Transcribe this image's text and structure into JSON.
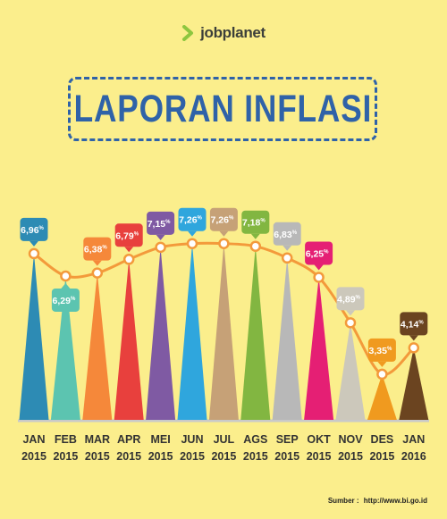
{
  "logo": {
    "text": "jobplanet",
    "mark_color": "#8dc63f"
  },
  "title": "LAPORAN INFLASI",
  "source": {
    "label": "Sumber :",
    "url": "http://www.bi.go.id"
  },
  "colors": {
    "background": "#fbee8c",
    "line": "#f39a3b",
    "baseline": "#c9c9c9",
    "title": "#2f62a8"
  },
  "chart_data": {
    "type": "line",
    "title": "LAPORAN INFLASI",
    "categories": [
      "JAN 2015",
      "FEB 2015",
      "MAR 2015",
      "APR 2015",
      "MEI 2015",
      "JUN 2015",
      "JUL 2015",
      "AGS 2015",
      "SEP 2015",
      "OKT 2015",
      "NOV 2015",
      "DES 2015",
      "JAN 2016"
    ],
    "category_lines": [
      [
        "JAN",
        "2015"
      ],
      [
        "FEB",
        "2015"
      ],
      [
        "MAR",
        "2015"
      ],
      [
        "APR",
        "2015"
      ],
      [
        "MEI",
        "2015"
      ],
      [
        "JUN",
        "2015"
      ],
      [
        "JUL",
        "2015"
      ],
      [
        "AGS",
        "2015"
      ],
      [
        "SEP",
        "2015"
      ],
      [
        "OKT",
        "2015"
      ],
      [
        "NOV",
        "2015"
      ],
      [
        "DES",
        "2015"
      ],
      [
        "JAN",
        "2016"
      ]
    ],
    "values": [
      6.96,
      6.29,
      6.38,
      6.79,
      7.15,
      7.26,
      7.26,
      7.18,
      6.83,
      6.25,
      4.89,
      3.35,
      4.14
    ],
    "value_labels": [
      "6,96",
      "6,29",
      "6,38",
      "6,79",
      "7,15",
      "7,26",
      "7,26",
      "7,18",
      "6,83",
      "6,25",
      "4,89",
      "3,35",
      "4,14"
    ],
    "unit": "%",
    "label_position": [
      "above",
      "below",
      "above",
      "above",
      "above",
      "above",
      "above",
      "above",
      "above",
      "above",
      "above",
      "above",
      "above"
    ],
    "colors": [
      "#2d8bb4",
      "#5cc4b0",
      "#f5883a",
      "#e8403d",
      "#7f5aa3",
      "#2fa6dd",
      "#c6a177",
      "#82b641",
      "#b8b8b8",
      "#e51f74",
      "#ccc8bb",
      "#f09a1f",
      "#6b4420"
    ],
    "ylim": [
      3.0,
      7.6
    ],
    "grid": false,
    "legend": "none"
  }
}
